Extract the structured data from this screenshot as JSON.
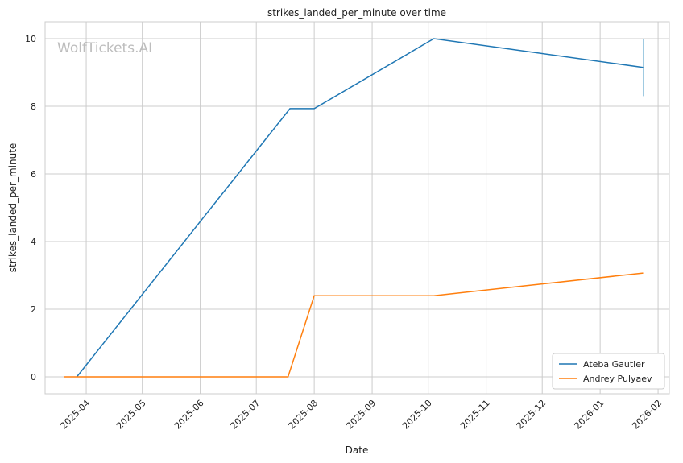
{
  "chart_data": {
    "type": "line",
    "title": "strikes_landed_per_minute over time",
    "xlabel": "Date",
    "ylabel": "strikes_landed_per_minute",
    "watermark": "WolfTickets.AI",
    "x_ticks": [
      "2025-04",
      "2025-05",
      "2025-06",
      "2025-07",
      "2025-08",
      "2025-09",
      "2025-10",
      "2025-11",
      "2025-12",
      "2026-01",
      "2026-02"
    ],
    "y_ticks": [
      0,
      2,
      4,
      6,
      8,
      10
    ],
    "xlim": [
      "2025-03-10",
      "2026-02-07"
    ],
    "ylim": [
      -0.5,
      10.5
    ],
    "grid": true,
    "legend_position": "bottom-right",
    "series": [
      {
        "name": "Ateba Gautier",
        "color": "#1f77b4",
        "points": [
          {
            "x": "2025-03-27",
            "y": 0
          },
          {
            "x": "2025-07-19",
            "y": 7.93
          },
          {
            "x": "2025-08-01",
            "y": 7.93
          },
          {
            "x": "2025-10-04",
            "y": 10.0
          },
          {
            "x": "2026-01-24",
            "y": 9.15
          }
        ]
      },
      {
        "name": "Andrey Pulyaev",
        "color": "#ff7f0e",
        "points": [
          {
            "x": "2025-03-20",
            "y": 0
          },
          {
            "x": "2025-07-18",
            "y": 0
          },
          {
            "x": "2025-08-01",
            "y": 2.4
          },
          {
            "x": "2025-10-04",
            "y": 2.4
          },
          {
            "x": "2026-01-24",
            "y": 3.07
          }
        ]
      }
    ],
    "error_bar": {
      "x": "2026-01-24",
      "y_low": 8.3,
      "y_high": 10.0
    }
  }
}
